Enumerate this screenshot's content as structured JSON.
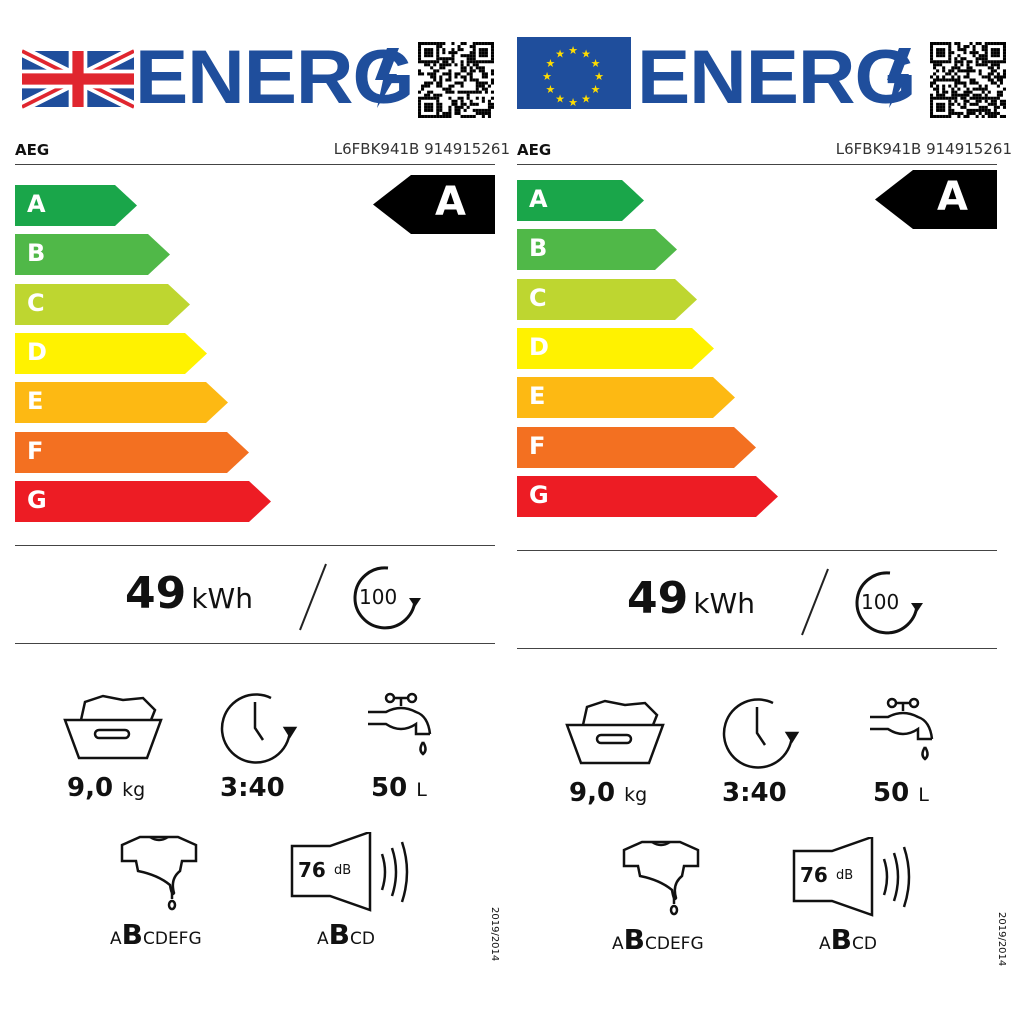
{
  "labels": [
    {
      "region": "UK",
      "flag": "uk-flag",
      "header": "ENERG",
      "brand": "AEG",
      "model": "L6FBK941B 914915261",
      "class": "A",
      "scale": [
        "A",
        "B",
        "C",
        "D",
        "E",
        "F",
        "G"
      ],
      "energy": {
        "value": "49",
        "unit": "kWh",
        "cycles": "100"
      },
      "capacity": {
        "value": "9,0",
        "unit": "kg"
      },
      "duration": {
        "value": "3:40"
      },
      "water": {
        "value": "50",
        "unit": "L"
      },
      "spin": {
        "pre": "A",
        "active": "B",
        "post": "CDEFG"
      },
      "noise": {
        "value": "76",
        "unit": "dB",
        "pre": "A",
        "active": "B",
        "post": "CD"
      },
      "regulation": "2019/2014"
    },
    {
      "region": "EU",
      "flag": "eu-flag",
      "header": "ENERG",
      "brand": "AEG",
      "model": "L6FBK941B 914915261",
      "class": "A",
      "scale": [
        "A",
        "B",
        "C",
        "D",
        "E",
        "F",
        "G"
      ],
      "energy": {
        "value": "49",
        "unit": "kWh",
        "cycles": "100"
      },
      "capacity": {
        "value": "9,0",
        "unit": "kg"
      },
      "duration": {
        "value": "3:40"
      },
      "water": {
        "value": "50",
        "unit": "L"
      },
      "spin": {
        "pre": "A",
        "active": "B",
        "post": "CDEFG"
      },
      "noise": {
        "value": "76",
        "unit": "dB",
        "pre": "A",
        "active": "B",
        "post": "CD"
      },
      "regulation": "2019/2014"
    }
  ],
  "colors": {
    "A": "#1aa64a",
    "B": "#50b848",
    "C": "#bed630",
    "D": "#fff200",
    "E": "#fdb913",
    "F": "#f37021",
    "G": "#ed1c24",
    "header": "#1f4e9c"
  }
}
